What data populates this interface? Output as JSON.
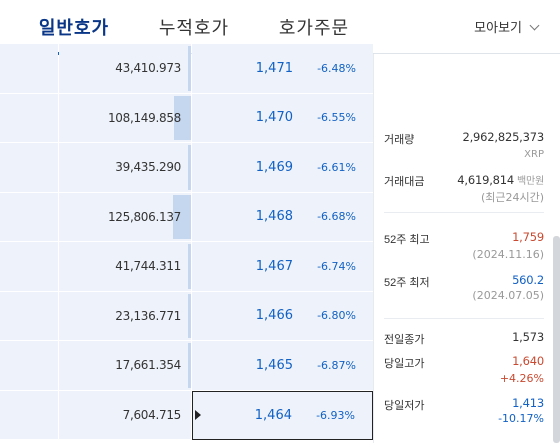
{
  "tabs": [
    {
      "label": "일반호가",
      "active": true
    },
    {
      "label": "누적호가",
      "active": false
    },
    {
      "label": "호가주문",
      "active": false
    }
  ],
  "view_toggle": "모아보기",
  "orderbook": [
    {
      "qty": "43,410.973",
      "price": "1,471",
      "rate": "-6.48%",
      "bar": 0.02
    },
    {
      "qty": "108,149.858",
      "price": "1,470",
      "rate": "-6.55%",
      "bar": 0.13
    },
    {
      "qty": "39,435.290",
      "price": "1,469",
      "rate": "-6.61%",
      "bar": 0.02
    },
    {
      "qty": "125,806.137",
      "price": "1,468",
      "rate": "-6.68%",
      "bar": 0.14
    },
    {
      "qty": "41,744.311",
      "price": "1,467",
      "rate": "-6.74%",
      "bar": 0.02
    },
    {
      "qty": "23,136.771",
      "price": "1,466",
      "rate": "-6.80%",
      "bar": 0.02
    },
    {
      "qty": "17,661.354",
      "price": "1,465",
      "rate": "-6.87%",
      "bar": 0.02
    },
    {
      "qty": "7,604.715",
      "price": "1,464",
      "rate": "-6.93%",
      "bar": 0.0
    }
  ],
  "info": {
    "volume_label": "거래량",
    "volume_value": "2,962,825,373",
    "volume_unit": "XRP",
    "amount_label": "거래대금",
    "amount_value": "4,619,814",
    "amount_unit": "백만원",
    "amount_note": "(최근24시간)",
    "high52_label": "52주 최고",
    "high52_value": "1,759",
    "high52_date": "(2024.11.16)",
    "low52_label": "52주 최저",
    "low52_value": "560.2",
    "low52_date": "(2024.07.05)",
    "prev_close_label": "전일종가",
    "prev_close_value": "1,573",
    "day_high_label": "당일고가",
    "day_high_value": "1,640",
    "day_high_rate": "+4.26%",
    "day_low_label": "당일저가",
    "day_low_value": "1,413",
    "day_low_rate": "-10.17%"
  },
  "colors": {
    "up": "#c84a31",
    "down": "#1261c4",
    "tab_active": "#093687",
    "ask_bg": "#eef3fb",
    "bar": "#c5d6ef"
  }
}
